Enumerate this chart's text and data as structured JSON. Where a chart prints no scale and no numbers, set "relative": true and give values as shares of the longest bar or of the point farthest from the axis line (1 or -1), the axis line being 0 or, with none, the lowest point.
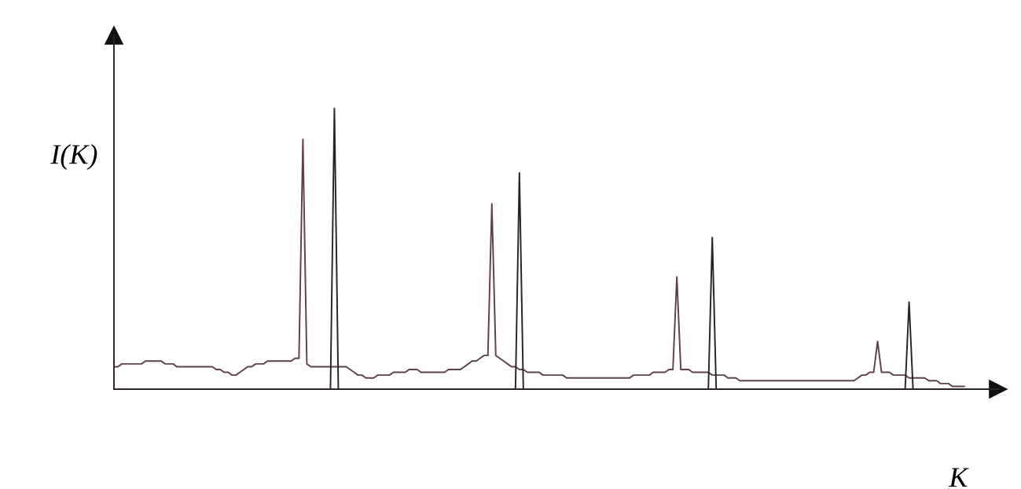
{
  "chart_data": {
    "type": "line",
    "xlabel": "K",
    "ylabel": "I(K)",
    "relative": true,
    "categories": [
      null,
      null,
      null,
      null,
      null,
      null,
      null,
      null,
      null,
      null,
      null,
      null,
      null,
      null,
      null,
      null,
      null,
      null,
      null,
      null,
      null,
      null,
      null,
      null,
      null,
      null,
      null,
      null,
      null,
      null,
      null,
      null,
      null,
      null,
      null,
      null,
      null,
      null,
      null,
      null,
      null,
      null,
      null,
      null,
      null,
      null,
      null,
      null,
      null,
      null,
      null,
      null,
      null,
      null,
      null,
      null,
      null,
      null,
      null,
      null,
      null,
      null,
      null,
      null,
      null,
      null,
      null,
      null,
      null,
      null,
      null,
      null,
      null,
      null,
      null,
      null,
      null,
      null,
      null,
      null,
      null,
      null,
      null,
      null,
      null,
      null,
      null,
      null,
      null,
      null,
      null,
      null,
      null,
      null,
      null,
      null,
      null,
      null,
      null,
      null,
      null,
      null,
      null,
      null,
      null,
      null,
      null,
      null,
      null,
      null,
      null,
      null,
      null,
      null,
      null,
      null,
      null,
      null,
      null,
      null,
      null,
      null,
      null,
      null,
      null,
      null,
      null,
      null,
      null,
      null,
      null,
      null,
      null,
      null,
      null,
      null,
      null,
      null,
      null,
      null,
      null,
      null,
      null,
      null,
      null,
      null,
      null,
      null,
      null,
      null,
      null,
      null,
      null,
      null,
      null,
      null,
      null,
      null,
      null,
      null,
      null,
      null,
      null,
      null,
      null,
      null,
      null,
      null,
      null,
      null,
      null,
      null,
      null,
      null,
      null,
      null,
      null,
      null,
      null,
      null,
      null,
      null,
      null,
      null,
      null,
      null,
      null,
      null,
      null,
      null,
      null,
      null,
      null,
      null,
      null,
      null,
      null,
      null,
      null,
      null,
      null,
      null,
      null,
      null,
      null,
      null,
      null,
      null,
      null,
      null,
      null,
      null,
      null,
      null,
      null,
      null,
      null
    ],
    "series": [
      {
        "color": "#5e4245",
        "values": [
          0.08,
          0.08,
          0.09,
          0.09,
          0.09,
          0.09,
          0.09,
          0.09,
          0.1,
          0.1,
          0.1,
          0.1,
          0.1,
          0.09,
          0.09,
          0.09,
          0.08,
          0.08,
          0.08,
          0.08,
          0.08,
          0.08,
          0.08,
          0.08,
          0.08,
          0.08,
          0.07,
          0.07,
          0.06,
          0.06,
          0.05,
          0.05,
          0.06,
          0.07,
          0.08,
          0.08,
          0.09,
          0.09,
          0.09,
          0.1,
          0.1,
          0.1,
          0.1,
          0.1,
          0.1,
          0.1,
          0.11,
          0.11,
          0.89,
          0.09,
          0.08,
          0.08,
          0.08,
          0.08,
          0.08,
          0.08,
          0.08,
          0.08,
          0.08,
          0.08,
          0.07,
          0.06,
          0.05,
          0.05,
          0.04,
          0.04,
          0.04,
          0.05,
          0.05,
          0.05,
          0.05,
          0.06,
          0.06,
          0.06,
          0.06,
          0.07,
          0.07,
          0.07,
          0.06,
          0.06,
          0.06,
          0.06,
          0.06,
          0.06,
          0.06,
          0.07,
          0.07,
          0.07,
          0.07,
          0.08,
          0.09,
          0.1,
          0.1,
          0.11,
          0.12,
          0.12,
          0.66,
          0.12,
          0.11,
          0.1,
          0.09,
          0.08,
          0.08,
          0.07,
          0.07,
          0.06,
          0.06,
          0.06,
          0.06,
          0.05,
          0.05,
          0.05,
          0.05,
          0.05,
          0.05,
          0.04,
          0.04,
          0.04,
          0.04,
          0.04,
          0.04,
          0.04,
          0.04,
          0.04,
          0.04,
          0.04,
          0.04,
          0.04,
          0.04,
          0.04,
          0.04,
          0.04,
          0.05,
          0.05,
          0.05,
          0.05,
          0.05,
          0.06,
          0.06,
          0.06,
          0.06,
          0.07,
          0.07,
          0.4,
          0.07,
          0.07,
          0.07,
          0.06,
          0.06,
          0.06,
          0.06,
          0.06,
          0.05,
          0.05,
          0.05,
          0.05,
          0.04,
          0.04,
          0.04,
          0.03,
          0.03,
          0.03,
          0.03,
          0.03,
          0.03,
          0.03,
          0.03,
          0.03,
          0.03,
          0.03,
          0.03,
          0.03,
          0.03,
          0.03,
          0.03,
          0.03,
          0.03,
          0.03,
          0.03,
          0.03,
          0.03,
          0.03,
          0.03,
          0.03,
          0.03,
          0.03,
          0.03,
          0.03,
          0.03,
          0.04,
          0.05,
          0.05,
          0.06,
          0.06,
          0.17,
          0.06,
          0.06,
          0.06,
          0.05,
          0.05,
          0.05,
          0.05,
          0.04,
          0.04,
          0.04,
          0.04,
          0.04,
          0.03,
          0.03,
          0.03,
          0.02,
          0.02,
          0.02,
          0.01,
          0.01,
          0.01,
          0.01
        ]
      },
      {
        "color": "#2a2224",
        "values": [
          0,
          0,
          0,
          0,
          0,
          0,
          0,
          0,
          0,
          0,
          0,
          0,
          0,
          0,
          0,
          0,
          0,
          0,
          0,
          0,
          0,
          0,
          0,
          0,
          0,
          0,
          0,
          0,
          0,
          0,
          0,
          0,
          0,
          0,
          0,
          0,
          0,
          0,
          0,
          0,
          0,
          0,
          0,
          0,
          0,
          0,
          0,
          0,
          0,
          0,
          0,
          0,
          0,
          0,
          0,
          0,
          1.0,
          0,
          0,
          0,
          0,
          0,
          0,
          0,
          0,
          0,
          0,
          0,
          0,
          0,
          0,
          0,
          0,
          0,
          0,
          0,
          0,
          0,
          0,
          0,
          0,
          0,
          0,
          0,
          0,
          0,
          0,
          0,
          0,
          0,
          0,
          0,
          0,
          0,
          0,
          0,
          0,
          0,
          0,
          0,
          0,
          0,
          0,
          0.77,
          0,
          0,
          0,
          0,
          0,
          0,
          0,
          0,
          0,
          0,
          0,
          0,
          0,
          0,
          0,
          0,
          0,
          0,
          0,
          0,
          0,
          0,
          0,
          0,
          0,
          0,
          0,
          0,
          0,
          0,
          0,
          0,
          0,
          0,
          0,
          0,
          0,
          0,
          0,
          0,
          0,
          0,
          0,
          0,
          0,
          0,
          0,
          0,
          0.54,
          0,
          0,
          0,
          0,
          0,
          0,
          0,
          0,
          0,
          0,
          0,
          0,
          0,
          0,
          0,
          0,
          0,
          0,
          0,
          0,
          0,
          0,
          0,
          0,
          0,
          0,
          0,
          0,
          0,
          0,
          0,
          0,
          0,
          0,
          0,
          0,
          0,
          0,
          0,
          0,
          0,
          0,
          0,
          0,
          0,
          0,
          0,
          0,
          0,
          0.31,
          0,
          0,
          0,
          0,
          0,
          0,
          0,
          0,
          0,
          0,
          0,
          0,
          0,
          0
        ]
      }
    ]
  }
}
